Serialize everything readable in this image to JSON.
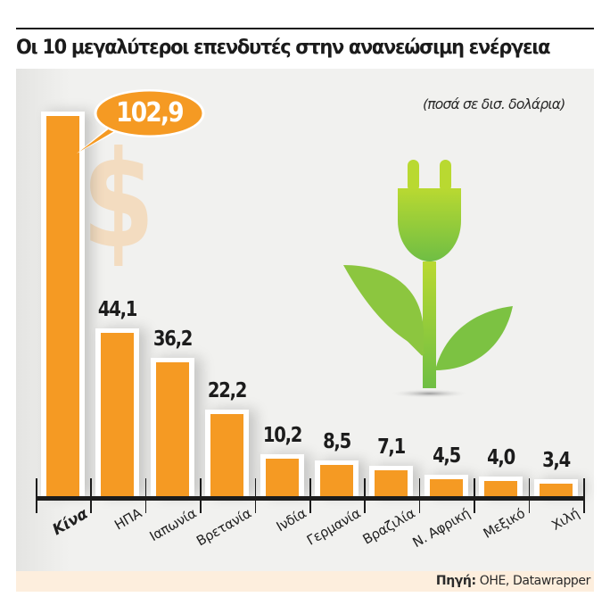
{
  "header": {
    "title": "Οι 10 μεγαλύτεροι επενδυτές στην ανανεώσιμη ενέργεια",
    "unit_note": "(ποσά σε δισ. δολάρια)"
  },
  "footer": {
    "source_label": "Πηγή:",
    "source_text": " ΟΗΕ, Datawrapper"
  },
  "callout": {
    "value_label": "102,9"
  },
  "decor": {
    "dollar_glyph": "$",
    "icons": [
      "dollar-sign-icon",
      "plug-plant-icon"
    ]
  },
  "colors": {
    "bar": "#f59a23",
    "panel": "#f1f1ef",
    "footer": "#fdeedd",
    "plant": "#8cc63f",
    "dollar": "#f3dcc0"
  },
  "chart_data": {
    "type": "bar",
    "title": "Οι 10 μεγαλύτεροι επενδυτές στην ανανεώσιμη ενέργεια",
    "subtitle": "(ποσά σε δισ. δολάρια)",
    "xlabel": "",
    "ylabel": "δισ. δολάρια",
    "categories": [
      "Κίνα",
      "ΗΠΑ",
      "Ιαπωνία",
      "Βρετανία",
      "Ινδία",
      "Γερμανία",
      "Βραζιλία",
      "Ν. Αφρική",
      "Μεξικό",
      "Χιλή"
    ],
    "values": [
      102.9,
      44.1,
      36.2,
      22.2,
      10.2,
      8.5,
      7.1,
      4.5,
      4.0,
      3.4
    ],
    "value_labels": [
      "102,9",
      "44,1",
      "36,2",
      "22,2",
      "10,2",
      "8,5",
      "7,1",
      "4,5",
      "4,0",
      "3,4"
    ],
    "ylim": [
      0,
      105
    ],
    "grid": false,
    "legend": "none",
    "source": "Πηγή: ΟΗΕ, Datawrapper"
  }
}
